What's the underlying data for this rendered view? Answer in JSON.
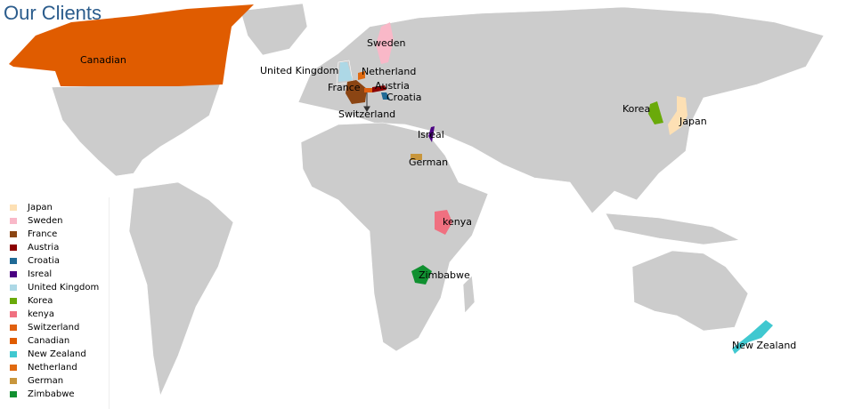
{
  "title": "Our Clients",
  "land_color": "#cccccc",
  "regions": {
    "japan": {
      "label": "Japan",
      "color": "#fde0b4"
    },
    "sweden": {
      "label": "Sweden",
      "color": "#f9b8c8"
    },
    "france": {
      "label": "France",
      "color": "#8b4513"
    },
    "austria": {
      "label": "Austria",
      "color": "#8b0000"
    },
    "croatia": {
      "label": "Croatia",
      "color": "#1f6a96"
    },
    "israel": {
      "label": "Isreal",
      "color": "#4b0082"
    },
    "uk": {
      "label": "United Kingdom",
      "color": "#add8e6"
    },
    "korea": {
      "label": "Korea",
      "color": "#6aaa0a"
    },
    "kenya": {
      "label": "kenya",
      "color": "#f07080"
    },
    "switzerland": {
      "label": "Switzerland",
      "color": "#e06010"
    },
    "canada": {
      "label": "Canadian",
      "color": "#e05c00"
    },
    "newzealand": {
      "label": "New Zealand",
      "color": "#40c8d0"
    },
    "netherland": {
      "label": "Netherland",
      "color": "#e06a10"
    },
    "german": {
      "label": "German",
      "color": "#c8963c"
    },
    "zimbabwe": {
      "label": "Zimbabwe",
      "color": "#109030"
    }
  },
  "legend_order": [
    "japan",
    "sweden",
    "france",
    "austria",
    "croatia",
    "israel",
    "uk",
    "korea",
    "kenya",
    "switzerland",
    "canada",
    "newzealand",
    "netherland",
    "german",
    "zimbabwe"
  ]
}
